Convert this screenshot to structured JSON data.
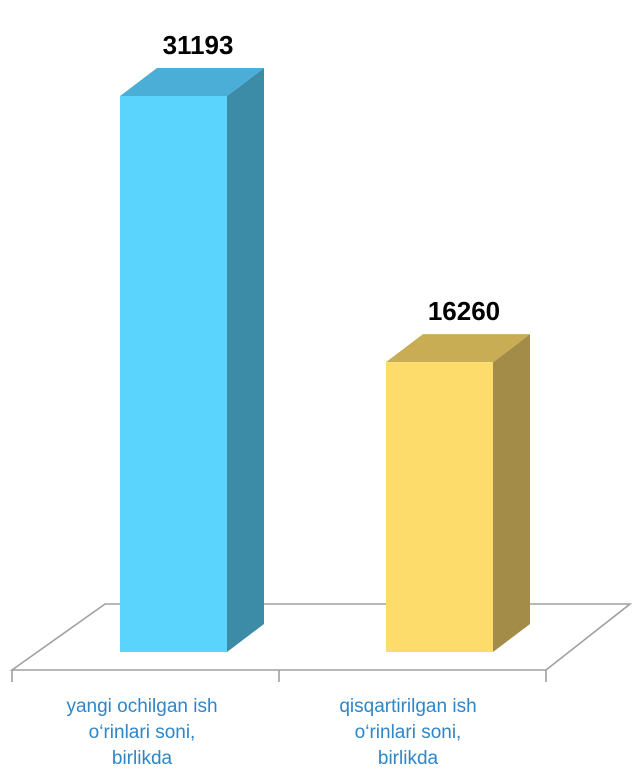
{
  "chart_data": {
    "type": "bar",
    "style": "3d",
    "categories": [
      [
        "yangi ochilgan ish",
        "o‘rinlari soni,",
        "birlikda"
      ],
      [
        "qisqartirilgan ish",
        "o‘rinlari soni,",
        "birlikda"
      ]
    ],
    "values": [
      31193,
      16260
    ],
    "value_labels": [
      "31193",
      "16260"
    ],
    "ylim": [
      0,
      31193
    ],
    "grid": false,
    "legend": "none",
    "colors": {
      "bars": [
        {
          "front": "#5ad4fd",
          "top": "#4aaed6",
          "side": "#3c8ca8"
        },
        {
          "front": "#fddc6b",
          "top": "#c8ad55",
          "side": "#a38c48"
        }
      ],
      "floor": "#a0a0a0",
      "category_text": "#2e86c9",
      "value_text": "#000000"
    }
  }
}
